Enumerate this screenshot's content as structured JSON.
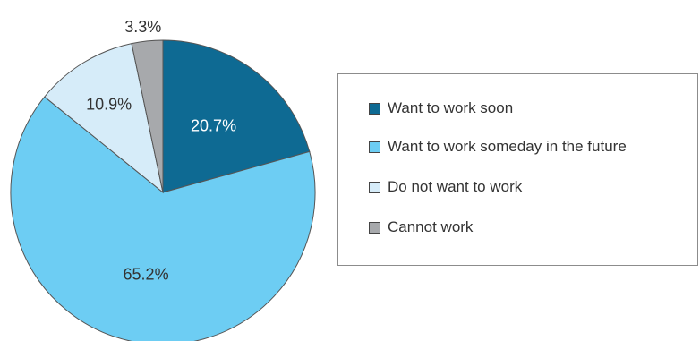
{
  "chart_data": {
    "type": "pie",
    "start_angle_deg": 0,
    "direction": "clockwise",
    "legend_position": "right",
    "slices": [
      {
        "label": "Want to work soon",
        "value": 20.7,
        "value_label": "20.7%",
        "color": "#0e6a93",
        "label_color": "#ffffff"
      },
      {
        "label": "Want to work someday in the future",
        "value": 65.2,
        "value_label": "65.2%",
        "color": "#6dcdf3",
        "label_color": "#333333"
      },
      {
        "label": "Do not want to work",
        "value": 10.9,
        "value_label": "10.9%",
        "color": "#d6ecf9",
        "label_color": "#333333"
      },
      {
        "label": "Cannot work",
        "value": 3.3,
        "value_label": "3.3%",
        "color": "#a7a9ac",
        "label_color": "#333333"
      }
    ]
  }
}
